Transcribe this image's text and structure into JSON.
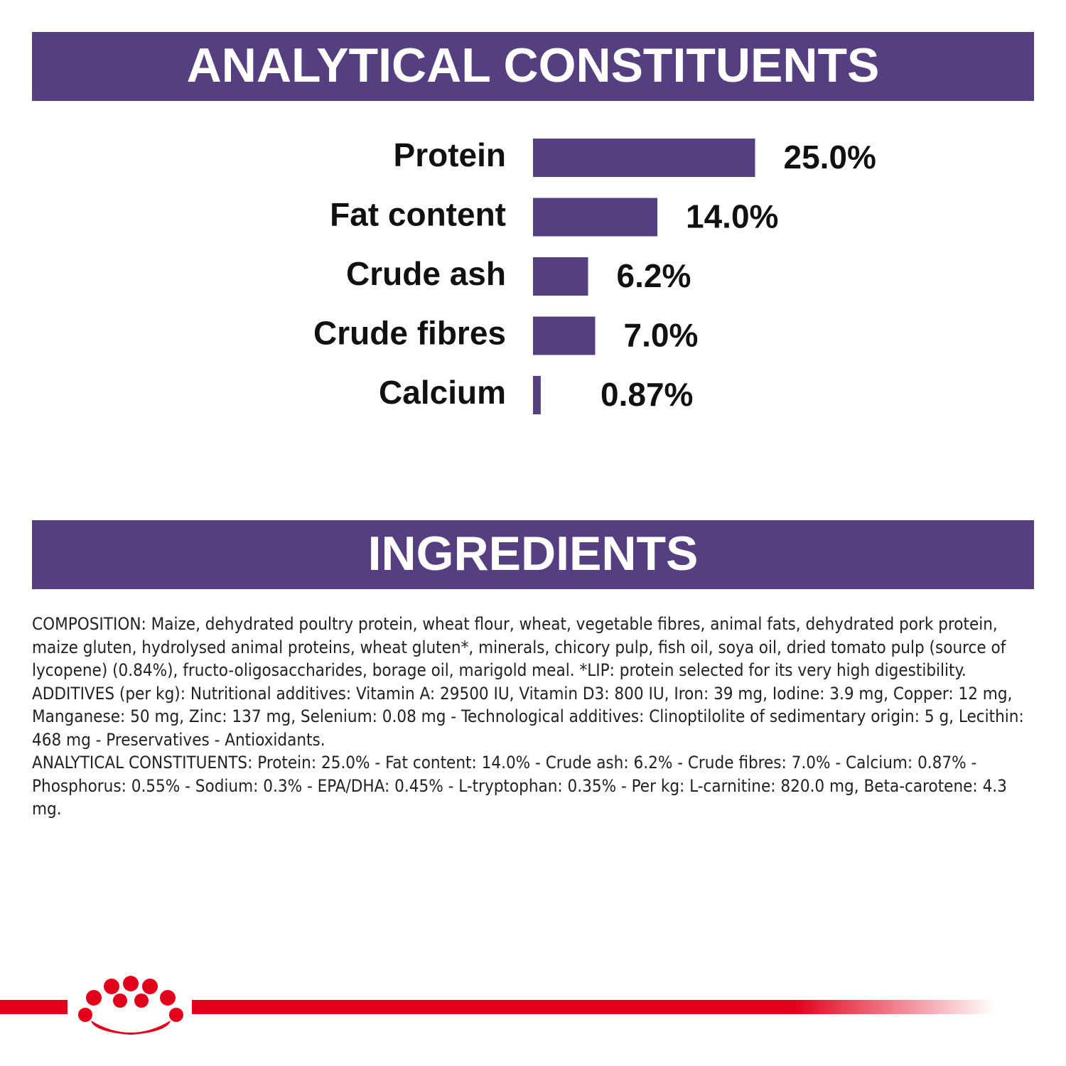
{
  "chart_data": {
    "type": "bar",
    "orientation": "horizontal",
    "title": "ANALYTICAL CONSTITUENTS",
    "categories": [
      "Protein",
      "Fat content",
      "Crude ash",
      "Crude fibres",
      "Calcium"
    ],
    "values": [
      25.0,
      14.0,
      6.2,
      7.0,
      0.87
    ],
    "value_labels": [
      "25.0%",
      "14.0%",
      "6.2%",
      "7.0%",
      "0.87%"
    ],
    "color": "#553f80"
  },
  "ingredients": {
    "title": "INGREDIENTS",
    "paragraphs": [
      "COMPOSITION: Maize, dehydrated poultry protein, wheat flour, wheat, vegetable fibres, animal fats, dehydrated pork protein, maize gluten, hydrolysed animal proteins, wheat gluten*, minerals, chicory pulp, fish oil, soya oil, dried tomato pulp (source of lycopene) (0.84%), fructo-oligosaccharides, borage oil, marigold meal. *LIP: protein selected for its very high digestibility.",
      "ADDITIVES (per kg): Nutritional additives: Vitamin A: 29500 IU, Vitamin D3: 800 IU, Iron: 39 mg, Iodine: 3.9 mg, Copper: 12 mg, Manganese: 50 mg, Zinc: 137 mg, Selenium: 0.08 mg - Technological additives: Clinoptilolite of sedimentary origin: 5 g, Lecithin: 468 mg - Preservatives - Antioxidants.",
      "ANALYTICAL CONSTITUENTS: Protein: 25.0% - Fat content: 14.0% - Crude ash: 6.2% - Crude fibres: 7.0% - Calcium: 0.87% - Phosphorus: 0.55% - Sodium: 0.3% - EPA/DHA: 0.45% - L-tryptophan: 0.35% - Per kg: L-carnitine: 820.0 mg, Beta-carotene: 4.3 mg."
    ]
  }
}
